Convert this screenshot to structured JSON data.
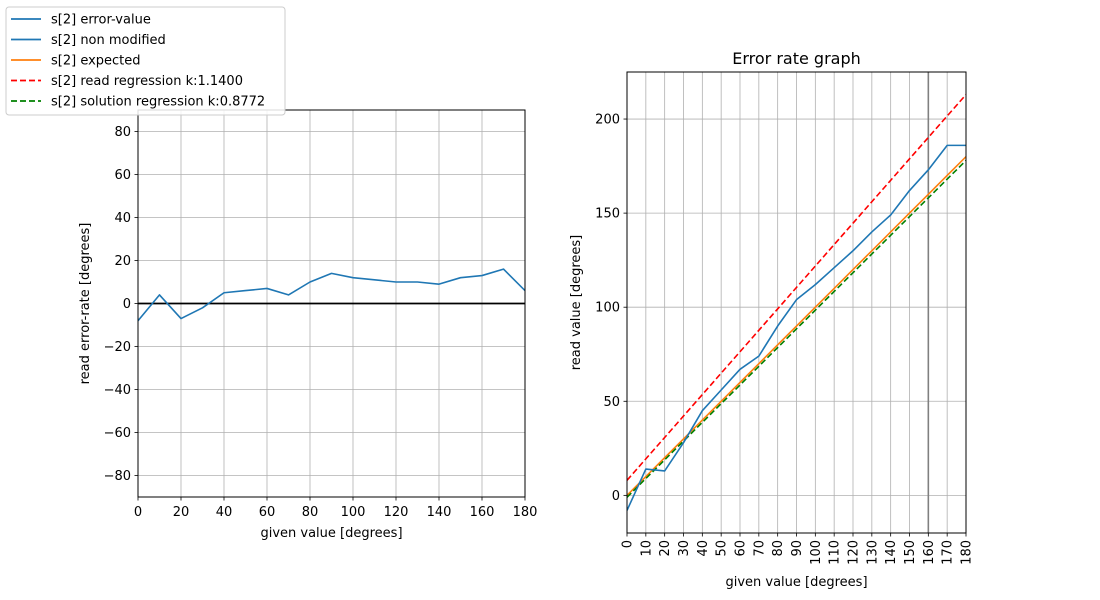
{
  "colors": {
    "error": "#1f77b4",
    "nonmod": "#1f77b4",
    "expected": "#ff7f0e",
    "read_reg": "#ff0000",
    "sol_reg": "#008000",
    "zero_line": "#000000",
    "vline": "#808080",
    "grid": "#b0b0b0"
  },
  "legend": {
    "placement": "top-left",
    "entries": [
      {
        "label": "s[2] error-value",
        "color": "#1f77b4",
        "style": "solid"
      },
      {
        "label": "s[2] non modified",
        "color": "#1f77b4",
        "style": "solid"
      },
      {
        "label": "s[2] expected",
        "color": "#ff7f0e",
        "style": "solid"
      },
      {
        "label": "s[2] read regression k:1.1400",
        "color": "#ff0000",
        "style": "dashed"
      },
      {
        "label": "s[2] solution regression k:0.8772",
        "color": "#008000",
        "style": "dashed"
      }
    ]
  },
  "chart_data": [
    {
      "type": "line",
      "title": "",
      "xlabel": "given value [degrees]",
      "ylabel": "read error-rate [degrees]",
      "xlim": [
        0,
        180
      ],
      "ylim": [
        -90,
        90
      ],
      "xticks": [
        0,
        20,
        40,
        60,
        80,
        100,
        120,
        140,
        160,
        180
      ],
      "xtick_labels": [
        "0",
        "20",
        "40",
        "60",
        "80",
        "100",
        "120",
        "140",
        "160",
        "180"
      ],
      "yticks": [
        -80,
        -60,
        -40,
        -20,
        0,
        20,
        40,
        60,
        80
      ],
      "ytick_labels": [
        "−80",
        "−60",
        "−40",
        "−20",
        "0",
        "20",
        "40",
        "60",
        "80"
      ],
      "grid": true,
      "x": [
        0,
        10,
        20,
        30,
        40,
        50,
        60,
        70,
        80,
        90,
        100,
        110,
        120,
        130,
        140,
        150,
        160,
        170,
        180
      ],
      "series": [
        {
          "name": "s[2] error-value",
          "values": [
            -8,
            4,
            -7,
            -2,
            5,
            6,
            7,
            4,
            10,
            14,
            12,
            11,
            10,
            10,
            9,
            12,
            13,
            16,
            6
          ]
        }
      ],
      "hlines": [
        0
      ]
    },
    {
      "type": "line",
      "title": "Error rate graph",
      "xlabel": "given value [degrees]",
      "ylabel": "read value [degrees]",
      "xlim": [
        0,
        180
      ],
      "ylim": [
        -20,
        225
      ],
      "xticks": [
        0,
        10,
        20,
        30,
        40,
        50,
        60,
        70,
        80,
        90,
        100,
        110,
        120,
        130,
        140,
        150,
        160,
        170,
        180
      ],
      "xtick_labels": [
        "0",
        "10",
        "20",
        "30",
        "40",
        "50",
        "60",
        "70",
        "80",
        "90",
        "100",
        "110",
        "120",
        "130",
        "140",
        "150",
        "160",
        "170",
        "180"
      ],
      "yticks": [
        0,
        50,
        100,
        150,
        200
      ],
      "ytick_labels": [
        "0",
        "50",
        "100",
        "150",
        "200"
      ],
      "grid": true,
      "x": [
        0,
        10,
        20,
        30,
        40,
        50,
        60,
        70,
        80,
        90,
        100,
        110,
        120,
        130,
        140,
        150,
        160,
        170,
        180
      ],
      "series": [
        {
          "name": "s[2] non modified",
          "values": [
            -8,
            14,
            13,
            28,
            45,
            56,
            67,
            74,
            90,
            104,
            112,
            121,
            130,
            140,
            149,
            162,
            173,
            186,
            186
          ]
        },
        {
          "name": "s[2] expected",
          "values": [
            0,
            10,
            20,
            30,
            40,
            50,
            60,
            70,
            80,
            90,
            100,
            110,
            120,
            130,
            140,
            150,
            160,
            170,
            180
          ]
        },
        {
          "name": "s[2] read regression k:1.1400",
          "x": [
            0,
            180
          ],
          "values": [
            8,
            213
          ]
        },
        {
          "name": "s[2] solution regression k:0.8772",
          "x": [
            0,
            180
          ],
          "values": [
            -1,
            178
          ]
        }
      ],
      "vlines": [
        160
      ]
    }
  ]
}
